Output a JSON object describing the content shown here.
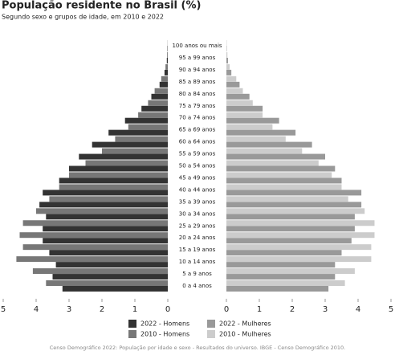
{
  "chart_data": {
    "type": "pyramid",
    "title": "População residente no Brasil (%)",
    "subtitle": "Segundo sexo e grupos de idade, em 2010 e 2022",
    "categories": [
      "0 a 4 anos",
      "5 a 9 anos",
      "10 a 14 anos",
      "15 a 19 anos",
      "20 a 24 anos",
      "25 a 29 anos",
      "30 a 34 anos",
      "35 a 39 anos",
      "40 a 44 anos",
      "45 a 49 anos",
      "50 a 54 anos",
      "55 a 59 anos",
      "60 a 64 anos",
      "65 a 69 anos",
      "70 a 74 anos",
      "75 a 79 anos",
      "80 a 84 anos",
      "85 a 89 anos",
      "90 a 94 anos",
      "95 a 99 anos",
      "100 anos ou mais"
    ],
    "series": [
      {
        "name": "2022 - Homens",
        "color": "#333333",
        "side": "left",
        "values": [
          3.2,
          3.5,
          3.4,
          3.6,
          3.8,
          3.8,
          3.7,
          3.9,
          3.8,
          3.3,
          3.0,
          2.7,
          2.3,
          1.8,
          1.3,
          0.8,
          0.5,
          0.25,
          0.1,
          0.03,
          0.01
        ]
      },
      {
        "name": "2022 - Mulheres",
        "color": "#999999",
        "side": "right",
        "values": [
          3.1,
          3.3,
          3.3,
          3.5,
          3.8,
          3.9,
          3.9,
          4.1,
          4.1,
          3.5,
          3.3,
          3.0,
          2.6,
          2.1,
          1.6,
          1.1,
          0.7,
          0.4,
          0.15,
          0.05,
          0.01
        ]
      },
      {
        "name": "2010 - Homens",
        "color": "#777777",
        "side": "left",
        "values": [
          3.7,
          4.1,
          4.6,
          4.4,
          4.5,
          4.4,
          4.0,
          3.6,
          3.3,
          3.0,
          2.5,
          2.0,
          1.6,
          1.2,
          0.9,
          0.6,
          0.4,
          0.2,
          0.07,
          0.02,
          0.005
        ]
      },
      {
        "name": "2010 - Mulheres",
        "color": "#cccccc",
        "side": "right",
        "values": [
          3.6,
          3.9,
          4.4,
          4.4,
          4.5,
          4.5,
          4.2,
          3.7,
          3.5,
          3.2,
          2.8,
          2.3,
          1.8,
          1.4,
          1.1,
          0.8,
          0.5,
          0.3,
          0.1,
          0.03,
          0.01
        ]
      }
    ],
    "xlim": [
      0,
      5
    ],
    "xticks": [
      0,
      1,
      2,
      3,
      4,
      5
    ],
    "source": "Censo Demográfico 2022: População por idade e sexo - Resultados do universo. IBGE - Censo Demográfico 2010."
  }
}
